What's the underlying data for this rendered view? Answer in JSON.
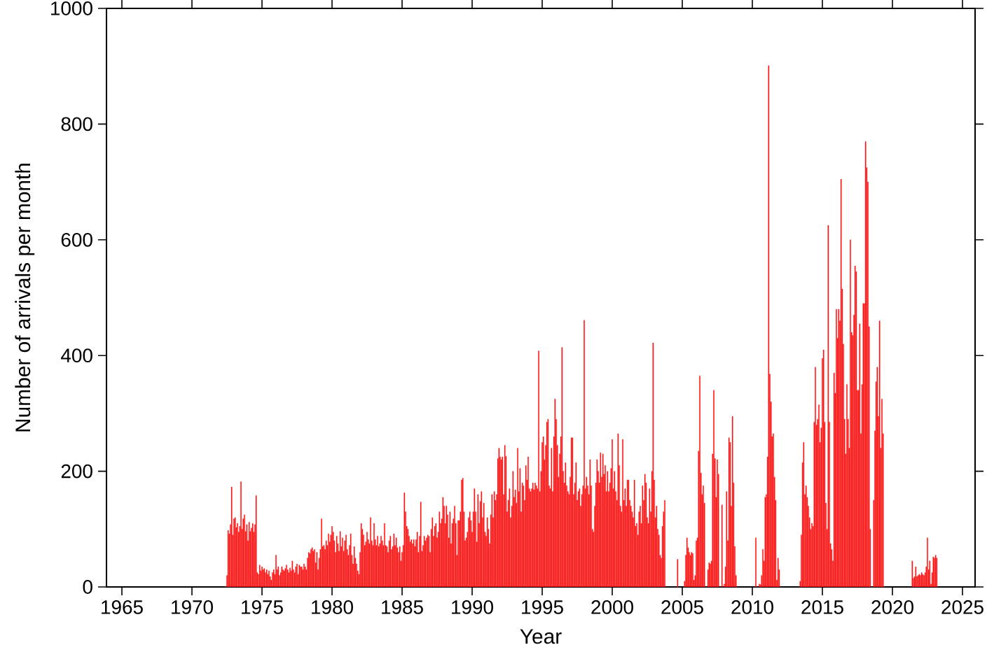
{
  "chart_data": {
    "type": "bar",
    "xlabel": "Year",
    "ylabel": "Number of arrivals per month",
    "color": "#ff1414",
    "xlim": [
      "1963-11-25",
      "2025-11-25"
    ],
    "ylim": [
      0,
      1000
    ],
    "xticks": [
      "1965",
      "1970",
      "1975",
      "1980",
      "1985",
      "1990",
      "1995",
      "2000",
      "2005",
      "2010",
      "2015",
      "2020",
      "2025"
    ],
    "yticks": [
      0,
      200,
      400,
      600,
      800,
      1000
    ],
    "x": [
      "1972-07",
      "1972-08",
      "1972-09",
      "1972-10",
      "1972-11",
      "1972-12",
      "1973-01",
      "1973-02",
      "1973-03",
      "1973-04",
      "1973-05",
      "1973-06",
      "1973-07",
      "1973-08",
      "1973-09",
      "1973-10",
      "1973-11",
      "1973-12",
      "1974-01",
      "1974-02",
      "1974-03",
      "1974-04",
      "1974-05",
      "1974-06",
      "1974-07",
      "1974-08",
      "1974-09",
      "1974-10",
      "1974-11",
      "1974-12",
      "1975-01",
      "1975-02",
      "1975-03",
      "1975-04",
      "1975-05",
      "1975-06",
      "1975-07",
      "1975-08",
      "1975-09",
      "1975-10",
      "1975-11",
      "1975-12",
      "1976-01",
      "1976-02",
      "1976-03",
      "1976-04",
      "1976-05",
      "1976-06",
      "1976-07",
      "1976-08",
      "1976-09",
      "1976-10",
      "1976-11",
      "1976-12",
      "1977-01",
      "1977-02",
      "1977-03",
      "1977-04",
      "1977-05",
      "1977-06",
      "1977-07",
      "1977-08",
      "1977-09",
      "1977-10",
      "1977-11",
      "1977-12",
      "1978-01",
      "1978-02",
      "1978-03",
      "1978-04",
      "1978-05",
      "1978-06",
      "1978-07",
      "1978-08",
      "1978-09",
      "1978-10",
      "1978-11",
      "1978-12",
      "1979-01",
      "1979-02",
      "1979-03",
      "1979-04",
      "1979-05",
      "1979-06",
      "1979-07",
      "1979-08",
      "1979-09",
      "1979-10",
      "1979-11",
      "1979-12",
      "1980-01",
      "1980-02",
      "1980-03",
      "1980-04",
      "1980-05",
      "1980-06",
      "1980-07",
      "1980-08",
      "1980-09",
      "1980-10",
      "1980-11",
      "1980-12",
      "1981-01",
      "1981-02",
      "1981-03",
      "1981-04",
      "1981-05",
      "1981-06",
      "1981-07",
      "1981-08",
      "1981-09",
      "1981-10",
      "1981-11",
      "1981-12",
      "1982-01",
      "1982-02",
      "1982-03",
      "1982-04",
      "1982-05",
      "1982-06",
      "1982-07",
      "1982-08",
      "1982-09",
      "1982-10",
      "1982-11",
      "1982-12",
      "1983-01",
      "1983-02",
      "1983-03",
      "1983-04",
      "1983-05",
      "1983-06",
      "1983-07",
      "1983-08",
      "1983-09",
      "1983-10",
      "1983-11",
      "1983-12",
      "1984-01",
      "1984-02",
      "1984-03",
      "1984-04",
      "1984-05",
      "1984-06",
      "1984-07",
      "1984-08",
      "1984-09",
      "1984-10",
      "1984-11",
      "1984-12",
      "1985-01",
      "1985-02",
      "1985-03",
      "1985-04",
      "1985-05",
      "1985-06",
      "1985-07",
      "1985-08",
      "1985-09",
      "1985-10",
      "1985-11",
      "1985-12",
      "1986-01",
      "1986-02",
      "1986-03",
      "1986-04",
      "1986-05",
      "1986-06",
      "1986-07",
      "1986-08",
      "1986-09",
      "1986-10",
      "1986-11",
      "1986-12",
      "1987-01",
      "1987-02",
      "1987-03",
      "1987-04",
      "1987-05",
      "1987-06",
      "1987-07",
      "1987-08",
      "1987-09",
      "1987-10",
      "1987-11",
      "1987-12",
      "1988-01",
      "1988-02",
      "1988-03",
      "1988-04",
      "1988-05",
      "1988-06",
      "1988-07",
      "1988-08",
      "1988-09",
      "1988-10",
      "1988-11",
      "1988-12",
      "1989-01",
      "1989-02",
      "1989-03",
      "1989-04",
      "1989-05",
      "1989-06",
      "1989-07",
      "1989-08",
      "1989-09",
      "1989-10",
      "1989-11",
      "1989-12",
      "1990-01",
      "1990-02",
      "1990-03",
      "1990-04",
      "1990-05",
      "1990-06",
      "1990-07",
      "1990-08",
      "1990-09",
      "1990-10",
      "1990-11",
      "1990-12",
      "1991-01",
      "1991-02",
      "1991-03",
      "1991-04",
      "1991-05",
      "1991-06",
      "1991-07",
      "1991-08",
      "1991-09",
      "1991-10",
      "1991-11",
      "1991-12",
      "1992-01",
      "1992-02",
      "1992-03",
      "1992-04",
      "1992-05",
      "1992-06",
      "1992-07",
      "1992-08",
      "1992-09",
      "1992-10",
      "1992-11",
      "1992-12",
      "1993-01",
      "1993-02",
      "1993-03",
      "1993-04",
      "1993-05",
      "1993-06",
      "1993-07",
      "1993-08",
      "1993-09",
      "1993-10",
      "1993-11",
      "1993-12",
      "1994-01",
      "1994-02",
      "1994-03",
      "1994-04",
      "1994-05",
      "1994-06",
      "1994-07",
      "1994-08",
      "1994-09",
      "1994-10",
      "1994-11",
      "1994-12",
      "1995-01",
      "1995-02",
      "1995-03",
      "1995-04",
      "1995-05",
      "1995-06",
      "1995-07",
      "1995-08",
      "1995-09",
      "1995-10",
      "1995-11",
      "1995-12",
      "1996-01",
      "1996-02",
      "1996-03",
      "1996-04",
      "1996-05",
      "1996-06",
      "1996-07",
      "1996-08",
      "1996-09",
      "1996-10",
      "1996-11",
      "1996-12",
      "1997-01",
      "1997-02",
      "1997-03",
      "1997-04",
      "1997-05",
      "1997-06",
      "1997-07",
      "1997-08",
      "1997-09",
      "1997-10",
      "1997-11",
      "1997-12",
      "1998-01",
      "1998-02",
      "1998-03",
      "1998-04",
      "1998-05",
      "1998-06",
      "1998-07",
      "1998-08",
      "1998-09",
      "1998-10",
      "1998-11",
      "1998-12",
      "1999-01",
      "1999-02",
      "1999-03",
      "1999-04",
      "1999-05",
      "1999-06",
      "1999-07",
      "1999-08",
      "1999-09",
      "1999-10",
      "1999-11",
      "1999-12",
      "2000-01",
      "2000-02",
      "2000-03",
      "2000-04",
      "2000-05",
      "2000-06",
      "2000-07",
      "2000-08",
      "2000-09",
      "2000-10",
      "2000-11",
      "2000-12",
      "2001-01",
      "2001-02",
      "2001-03",
      "2001-04",
      "2001-05",
      "2001-06",
      "2001-07",
      "2001-08",
      "2001-09",
      "2001-10",
      "2001-11",
      "2001-12",
      "2002-01",
      "2002-02",
      "2002-03",
      "2002-04",
      "2002-05",
      "2002-06",
      "2002-07",
      "2002-08",
      "2002-09",
      "2002-10",
      "2002-11",
      "2002-12",
      "2003-01",
      "2003-02",
      "2003-03",
      "2003-04",
      "2003-05",
      "2003-06",
      "2003-07",
      "2003-08",
      "2003-09",
      "2003-10",
      "2004-09",
      "2005-03",
      "2005-04",
      "2005-05",
      "2005-06",
      "2005-07",
      "2005-08",
      "2005-09",
      "2005-10",
      "2005-11",
      "2005-12",
      "2006-01",
      "2006-02",
      "2006-03",
      "2006-04",
      "2006-05",
      "2006-06",
      "2006-07",
      "2006-08",
      "2006-11",
      "2006-12",
      "2007-01",
      "2007-02",
      "2007-03",
      "2007-04",
      "2007-05",
      "2007-06",
      "2007-07",
      "2007-08",
      "2007-11",
      "2008-01",
      "2008-02",
      "2008-03",
      "2008-04",
      "2008-05",
      "2008-06",
      "2008-07",
      "2008-08",
      "2008-09",
      "2008-10",
      "2008-11",
      "2010-04",
      "2010-07",
      "2010-08",
      "2010-09",
      "2010-10",
      "2010-11",
      "2010-12",
      "2011-01",
      "2011-02",
      "2011-03",
      "2011-04",
      "2011-05",
      "2011-06",
      "2011-07",
      "2011-08",
      "2011-09",
      "2011-10",
      "2011-11",
      "2011-12",
      "2013-06",
      "2013-07",
      "2013-08",
      "2013-09",
      "2013-10",
      "2013-11",
      "2013-12",
      "2014-01",
      "2014-02",
      "2014-03",
      "2014-04",
      "2014-05",
      "2014-06",
      "2014-07",
      "2014-08",
      "2014-09",
      "2014-10",
      "2014-11",
      "2014-12",
      "2015-01",
      "2015-02",
      "2015-03",
      "2015-04",
      "2015-05",
      "2015-06",
      "2015-07",
      "2015-08",
      "2015-09",
      "2015-10",
      "2015-11",
      "2015-12",
      "2016-01",
      "2016-02",
      "2016-03",
      "2016-04",
      "2016-05",
      "2016-06",
      "2016-07",
      "2016-08",
      "2016-09",
      "2016-10",
      "2016-11",
      "2016-12",
      "2017-01",
      "2017-02",
      "2017-03",
      "2017-04",
      "2017-05",
      "2017-06",
      "2017-07",
      "2017-08",
      "2017-09",
      "2017-10",
      "2017-11",
      "2017-12",
      "2018-01",
      "2018-02",
      "2018-03",
      "2018-04",
      "2018-05",
      "2018-06",
      "2018-09",
      "2018-10",
      "2018-11",
      "2018-12",
      "2019-01",
      "2019-02",
      "2019-03",
      "2019-04",
      "2019-05",
      "2021-06",
      "2021-07",
      "2021-08",
      "2021-09",
      "2021-10",
      "2021-11",
      "2021-12",
      "2022-01",
      "2022-02",
      "2022-03",
      "2022-04",
      "2022-05",
      "2022-06",
      "2022-07",
      "2022-08",
      "2022-09",
      "2022-10",
      "2022-11",
      "2022-12",
      "2023-01",
      "2023-02",
      "2023-03"
    ],
    "values": [
      20,
      98,
      92,
      108,
      173,
      90,
      118,
      120,
      103,
      110,
      95,
      105,
      182,
      100,
      118,
      125,
      96,
      108,
      80,
      112,
      96,
      102,
      110,
      95,
      108,
      158,
      25,
      22,
      38,
      28,
      35,
      30,
      32,
      25,
      30,
      22,
      28,
      18,
      12,
      25,
      30,
      22,
      55,
      30,
      35,
      20,
      25,
      35,
      30,
      28,
      32,
      38,
      30,
      25,
      33,
      28,
      45,
      30,
      25,
      35,
      40,
      22,
      38,
      35,
      35,
      30,
      40,
      35,
      30,
      50,
      60,
      58,
      65,
      68,
      62,
      65,
      42,
      60,
      30,
      50,
      65,
      118,
      70,
      72,
      65,
      80,
      72,
      92,
      78,
      90,
      105,
      95,
      80,
      60,
      88,
      75,
      62,
      96,
      70,
      85,
      62,
      80,
      90,
      65,
      55,
      72,
      92,
      55,
      40,
      70,
      50,
      40,
      28,
      22,
      60,
      110,
      100,
      90,
      72,
      78,
      95,
      82,
      75,
      120,
      80,
      72,
      110,
      82,
      72,
      88,
      70,
      75,
      88,
      80,
      72,
      110,
      72,
      70,
      60,
      80,
      88,
      65,
      70,
      92,
      72,
      85,
      68,
      60,
      70,
      45,
      60,
      72,
      163,
      130,
      105,
      100,
      88,
      78,
      82,
      75,
      82,
      70,
      82,
      95,
      60,
      88,
      147,
      62,
      72,
      88,
      80,
      85,
      90,
      88,
      60,
      100,
      120,
      88,
      105,
      110,
      85,
      95,
      130,
      110,
      118,
      155,
      140,
      110,
      140,
      125,
      85,
      130,
      75,
      110,
      118,
      140,
      110,
      55,
      115,
      115,
      130,
      185,
      188,
      130,
      80,
      85,
      95,
      120,
      130,
      115,
      95,
      130,
      170,
      130,
      78,
      160,
      110,
      148,
      165,
      120,
      145,
      95,
      88,
      120,
      100,
      75,
      125,
      160,
      120,
      165,
      150,
      160,
      222,
      240,
      225,
      220,
      225,
      160,
      245,
      226,
      130,
      150,
      170,
      120,
      140,
      200,
      155,
      168,
      145,
      240,
      165,
      205,
      130,
      180,
      175,
      150,
      210,
      185,
      225,
      170,
      165,
      170,
      180,
      168,
      180,
      175,
      170,
      408,
      165,
      200,
      250,
      260,
      220,
      245,
      285,
      290,
      175,
      170,
      240,
      165,
      260,
      325,
      290,
      245,
      190,
      230,
      260,
      414,
      200,
      180,
      215,
      175,
      165,
      160,
      190,
      258,
      258,
      160,
      180,
      215,
      150,
      165,
      170,
      140,
      160,
      175,
      461,
      170,
      190,
      175,
      160,
      220,
      175,
      100,
      95,
      140,
      180,
      220,
      200,
      180,
      232,
      190,
      230,
      195,
      210,
      165,
      200,
      165,
      180,
      205,
      255,
      170,
      200,
      165,
      150,
      265,
      210,
      140,
      130,
      255,
      150,
      170,
      140,
      185,
      185,
      150,
      140,
      130,
      120,
      185,
      105,
      110,
      90,
      130,
      140,
      110,
      175,
      150,
      195,
      180,
      120,
      110,
      170,
      130,
      200,
      422,
      185,
      120,
      140,
      100,
      90,
      55,
      50,
      105,
      130,
      150,
      48,
      10,
      55,
      85,
      68,
      60,
      55,
      60,
      58,
      12,
      20,
      80,
      85,
      235,
      365,
      197,
      160,
      175,
      145,
      30,
      42,
      40,
      45,
      230,
      340,
      222,
      155,
      220,
      195,
      142,
      5,
      35,
      165,
      80,
      258,
      250,
      140,
      295,
      180,
      70,
      20,
      85,
      5,
      4,
      20,
      65,
      45,
      155,
      160,
      225,
      901,
      368,
      320,
      260,
      265,
      190,
      150,
      12,
      50,
      30,
      10,
      90,
      215,
      250,
      160,
      175,
      155,
      140,
      120,
      100,
      110,
      105,
      285,
      380,
      280,
      290,
      315,
      250,
      275,
      395,
      410,
      285,
      145,
      100,
      625,
      285,
      75,
      65,
      45,
      370,
      335,
      480,
      430,
      480,
      460,
      705,
      515,
      420,
      290,
      230,
      350,
      290,
      240,
      600,
      440,
      435,
      470,
      555,
      545,
      340,
      340,
      455,
      265,
      350,
      490,
      490,
      770,
      725,
      700,
      450,
      100,
      150,
      270,
      355,
      380,
      295,
      460,
      240,
      325,
      265,
      45,
      15,
      18,
      35,
      18,
      20,
      22,
      20,
      25,
      22,
      20,
      25,
      35,
      85,
      30,
      45,
      5,
      25,
      52,
      50,
      55,
      50
    ]
  }
}
